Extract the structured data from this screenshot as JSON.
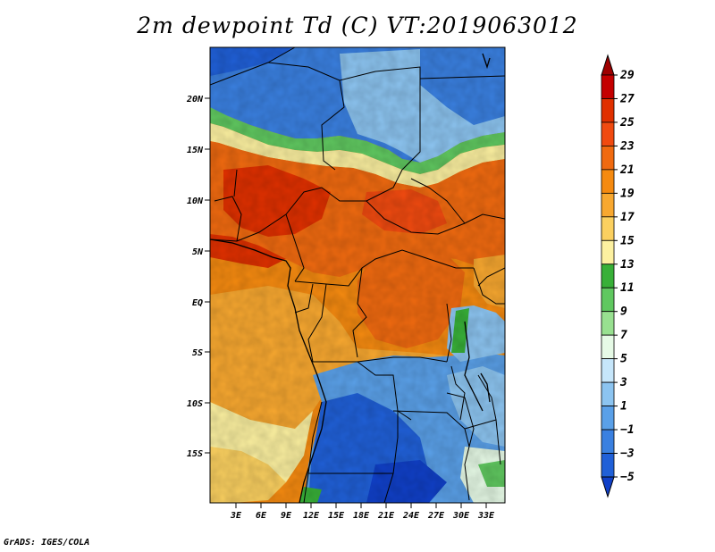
{
  "title": "2m dewpoint Td (C) VT:2019063012",
  "footer": "GrADS: IGES/COLA",
  "map": {
    "lat_ticks": [
      "20N",
      "15N",
      "10N",
      "5N",
      "EQ",
      "5S",
      "10S",
      "15S"
    ],
    "lon_ticks": [
      "3E",
      "6E",
      "9E",
      "12E",
      "15E",
      "18E",
      "21E",
      "24E",
      "27E",
      "30E",
      "33E"
    ]
  },
  "colorbar": {
    "labels": [
      "29",
      "27",
      "25",
      "23",
      "21",
      "19",
      "17",
      "15",
      "13",
      "11",
      "9",
      "7",
      "5",
      "3",
      "1",
      "−1",
      "−3",
      "−5"
    ],
    "colors": [
      "#9e0000",
      "#c40000",
      "#e03000",
      "#f04a10",
      "#f06a10",
      "#f58a10",
      "#f8a830",
      "#fbd060",
      "#fcf0a0",
      "#38b038",
      "#60c860",
      "#98e090",
      "#e6fae6",
      "#c6e6fa",
      "#8cc4f0",
      "#5aa0e8",
      "#3a80e0",
      "#2060d8",
      "#1040c8"
    ]
  }
}
